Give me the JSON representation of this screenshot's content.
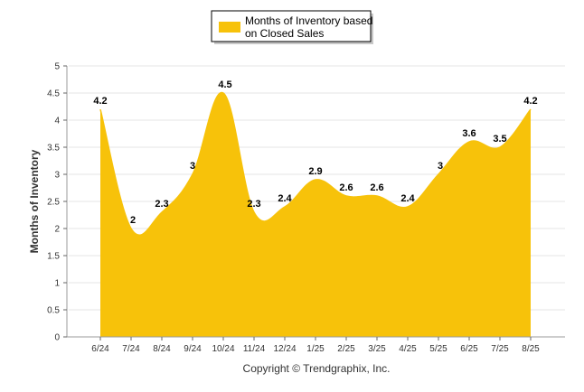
{
  "chart_data": {
    "type": "area",
    "categories": [
      "6/24",
      "7/24",
      "8/24",
      "9/24",
      "10/24",
      "11/24",
      "12/24",
      "1/25",
      "2/25",
      "3/25",
      "4/25",
      "5/25",
      "6/25",
      "7/25",
      "8/25"
    ],
    "series": [
      {
        "name": "Months of Inventory based on Closed Sales",
        "values": [
          4.2,
          2,
          2.3,
          3,
          4.5,
          2.3,
          2.4,
          2.9,
          2.6,
          2.6,
          2.4,
          3,
          3.6,
          3.5,
          4.2
        ],
        "labels": [
          "4.2",
          "2",
          "2.3",
          "3",
          "4.5",
          "2.3",
          "2.4",
          "2.9",
          "2.6",
          "2.6",
          "2.4",
          "3",
          "3.6",
          "3.5",
          "4.2"
        ],
        "color": "#F7C20A"
      }
    ],
    "xlabel": "",
    "ylabel": "Months of Inventory",
    "ylim": [
      0,
      5
    ],
    "yticks": [
      "0",
      "0.5",
      "1",
      "1.5",
      "2",
      "2.5",
      "3",
      "3.5",
      "4",
      "4.5",
      "5"
    ],
    "grid": true,
    "legend_position": "top-center",
    "legend_lines": [
      "Months of Inventory based",
      "on Closed Sales"
    ],
    "footer": "Copyright © Trendgraphix, Inc."
  }
}
